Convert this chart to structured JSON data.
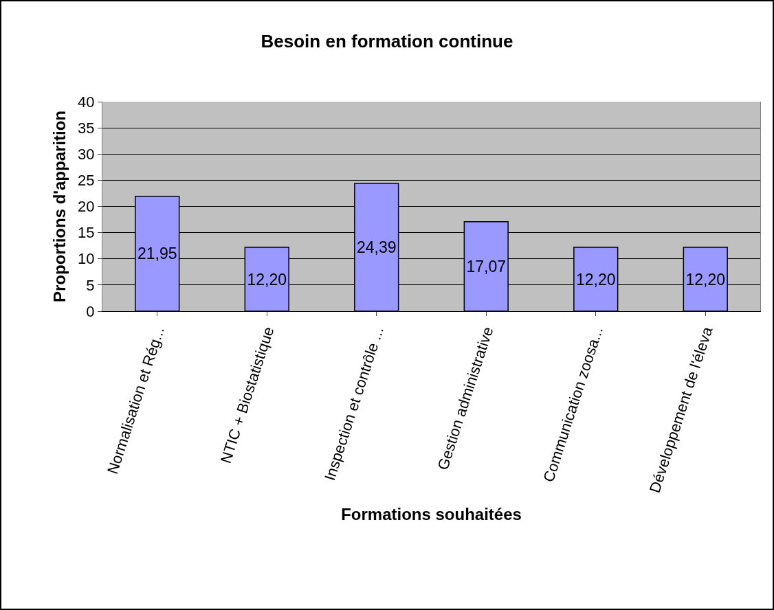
{
  "chart_data": {
    "type": "bar",
    "title": "Besoin en formation continue",
    "xlabel": "Formations souhaitées",
    "ylabel": "Proportions d'apparition",
    "categories": [
      "Normalisation et Rég...",
      "NTIC + Biostatistique",
      "Inspection et contrôle ...",
      "Gestion administrative",
      "Communication zoosa...",
      "Développement de l'éleva"
    ],
    "values": [
      21.95,
      12.2,
      24.39,
      17.07,
      12.2,
      12.2
    ],
    "value_labels": [
      "21,95",
      "12,20",
      "24,39",
      "17,07",
      "12,20",
      "12,20"
    ],
    "color": "#9999ff",
    "ylim": [
      0,
      40
    ],
    "yticks": [
      0,
      5,
      10,
      15,
      20,
      25,
      30,
      35,
      40
    ],
    "grid": "y"
  }
}
